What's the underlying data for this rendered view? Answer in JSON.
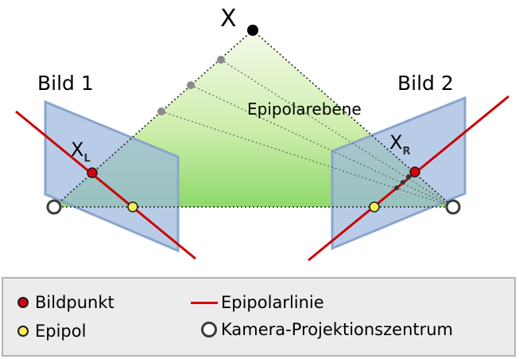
{
  "labels": {
    "point_x": "X",
    "image_1": "Bild 1",
    "image_2": "Bild 2",
    "epipolar_plane": "Epipolarebene",
    "x_left_main": "X",
    "x_left_sub": "L",
    "x_right_main": "X",
    "x_right_sub": "R"
  },
  "legend": {
    "image_point": "Bildpunkt",
    "epipole": "Epipol",
    "epipolar_line": "Epipolarlinie",
    "camera_center": "Kamera-Projektionszentrum"
  },
  "colors": {
    "plane_fill": "#9db8df",
    "plane_edge": "#8aa5cc",
    "epipolar_line": "#cc0000",
    "image_point": "#d9000f",
    "epipole": "#f5ee55",
    "gradient_top": "#f2f9e6",
    "gradient_bottom": "#8fd96b"
  }
}
